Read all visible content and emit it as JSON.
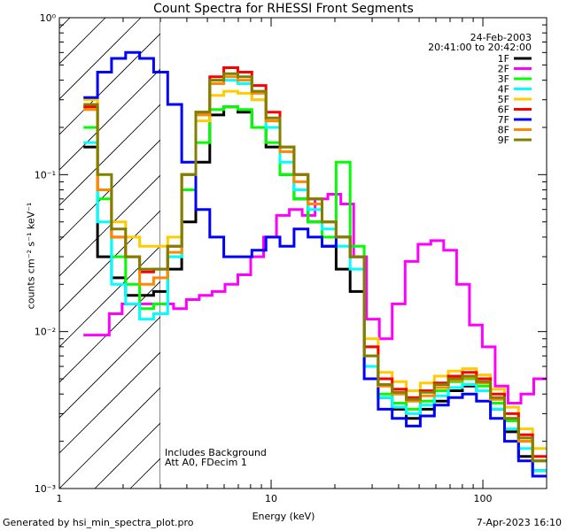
{
  "chart_data": {
    "type": "line",
    "title": "Count Spectra for RHESSI Front Segments",
    "xlabel": "Energy (keV)",
    "ylabel": "counts cm⁻² s⁻¹ keV⁻¹",
    "x_scale": "log",
    "y_scale": "log",
    "xlim": [
      1,
      200
    ],
    "ylim": [
      0.001,
      1
    ],
    "x_ticks": [
      {
        "value": 1,
        "label": "1"
      },
      {
        "value": 10,
        "label": "10"
      },
      {
        "value": 100,
        "label": "100"
      }
    ],
    "y_ticks": [
      {
        "value": 1,
        "label": "10⁰"
      },
      {
        "value": 0.1,
        "label": "10⁻¹"
      },
      {
        "value": 0.01,
        "label": "10⁻²"
      },
      {
        "value": 0.001,
        "label": "10⁻³"
      }
    ],
    "date": "24-Feb-2003",
    "time_range": "20:41:00 to 20:42:00",
    "annotations": [
      "Includes Background",
      "Att A0, FDecim 1"
    ],
    "hatched_region_upper_keV": 3,
    "legend_position": "top-right",
    "series": [
      {
        "name": "1F",
        "color": "#000000",
        "values": [
          0.15,
          0.03,
          0.022,
          0.017,
          0.017,
          0.018,
          0.025,
          0.05,
          0.12,
          0.24,
          0.27,
          0.25,
          0.2,
          0.15,
          0.1,
          0.07,
          0.05,
          0.035,
          0.025,
          0.018,
          0.006,
          0.0038,
          0.0032,
          0.0028,
          0.0032,
          0.0036,
          0.0042,
          0.0045,
          0.0042,
          0.0032,
          0.0023,
          0.0016,
          0.0013
        ]
      },
      {
        "name": "2F",
        "color": "#ff00ff",
        "values": [
          0.0095,
          0.0095,
          0.013,
          0.015,
          0.015,
          0.015,
          0.015,
          0.014,
          0.016,
          0.017,
          0.018,
          0.02,
          0.023,
          0.03,
          0.04,
          0.055,
          0.06,
          0.055,
          0.07,
          0.075,
          0.065,
          0.03,
          0.012,
          0.009,
          0.015,
          0.028,
          0.036,
          0.038,
          0.033,
          0.02,
          0.011,
          0.008,
          0.0045,
          0.0035,
          0.004,
          0.005
        ]
      },
      {
        "name": "3F",
        "color": "#00ff00",
        "values": [
          0.2,
          0.07,
          0.03,
          0.02,
          0.014,
          0.015,
          0.03,
          0.08,
          0.16,
          0.26,
          0.27,
          0.26,
          0.2,
          0.16,
          0.1,
          0.07,
          0.05,
          0.04,
          0.12,
          0.035,
          0.008,
          0.004,
          0.0035,
          0.0032,
          0.0036,
          0.0042,
          0.0048,
          0.005,
          0.0045,
          0.0035,
          0.0027,
          0.002,
          0.0015
        ]
      },
      {
        "name": "4F",
        "color": "#00ffff",
        "values": [
          0.16,
          0.05,
          0.02,
          0.015,
          0.012,
          0.013,
          0.03,
          0.1,
          0.25,
          0.38,
          0.4,
          0.38,
          0.3,
          0.2,
          0.12,
          0.08,
          0.06,
          0.045,
          0.035,
          0.025,
          0.006,
          0.0038,
          0.0033,
          0.003,
          0.0034,
          0.0039,
          0.0044,
          0.0046,
          0.0042,
          0.0032,
          0.0024,
          0.0018,
          0.0013
        ]
      },
      {
        "name": "5F",
        "color": "#ffcc00",
        "values": [
          0.3,
          0.08,
          0.05,
          0.04,
          0.035,
          0.035,
          0.04,
          0.1,
          0.22,
          0.32,
          0.34,
          0.33,
          0.3,
          0.22,
          0.14,
          0.1,
          0.07,
          0.05,
          0.04,
          0.03,
          0.009,
          0.0055,
          0.0048,
          0.0042,
          0.0047,
          0.0052,
          0.0056,
          0.0058,
          0.0053,
          0.0043,
          0.0033,
          0.0024,
          0.0018
        ]
      },
      {
        "name": "6F",
        "color": "#ff0000",
        "values": [
          0.27,
          0.08,
          0.04,
          0.03,
          0.024,
          0.025,
          0.035,
          0.1,
          0.25,
          0.42,
          0.48,
          0.45,
          0.37,
          0.25,
          0.15,
          0.1,
          0.07,
          0.05,
          0.04,
          0.03,
          0.008,
          0.005,
          0.0043,
          0.0038,
          0.0042,
          0.0047,
          0.0052,
          0.0055,
          0.005,
          0.004,
          0.003,
          0.0022,
          0.0016
        ]
      },
      {
        "name": "7F",
        "color": "#0000ff",
        "values": [
          0.31,
          0.45,
          0.55,
          0.6,
          0.55,
          0.45,
          0.28,
          0.12,
          0.06,
          0.04,
          0.03,
          0.03,
          0.033,
          0.04,
          0.035,
          0.045,
          0.04,
          0.035,
          0.04,
          0.03,
          0.005,
          0.0032,
          0.0028,
          0.0025,
          0.0029,
          0.0034,
          0.0038,
          0.004,
          0.0036,
          0.0028,
          0.002,
          0.0015,
          0.0012
        ]
      },
      {
        "name": "8F",
        "color": "#ff8800",
        "values": [
          0.26,
          0.08,
          0.04,
          0.03,
          0.02,
          0.022,
          0.032,
          0.1,
          0.24,
          0.38,
          0.42,
          0.4,
          0.33,
          0.22,
          0.14,
          0.09,
          0.065,
          0.05,
          0.04,
          0.03,
          0.007,
          0.0045,
          0.004,
          0.0036,
          0.0039,
          0.0044,
          0.0049,
          0.0051,
          0.0047,
          0.0037,
          0.0028,
          0.002,
          0.0015
        ]
      },
      {
        "name": "9F",
        "color": "#808000",
        "values": [
          0.28,
          0.1,
          0.045,
          0.03,
          0.025,
          0.025,
          0.035,
          0.1,
          0.25,
          0.4,
          0.44,
          0.42,
          0.34,
          0.23,
          0.15,
          0.1,
          0.07,
          0.05,
          0.04,
          0.03,
          0.007,
          0.0046,
          0.0041,
          0.0037,
          0.0041,
          0.0046,
          0.005,
          0.0052,
          0.0048,
          0.0038,
          0.0028,
          0.0021,
          0.0015
        ]
      }
    ]
  },
  "footer": {
    "generated_by": "Generated by hsi_min_spectra_plot.pro",
    "timestamp": "7-Apr-2023 16:10"
  }
}
